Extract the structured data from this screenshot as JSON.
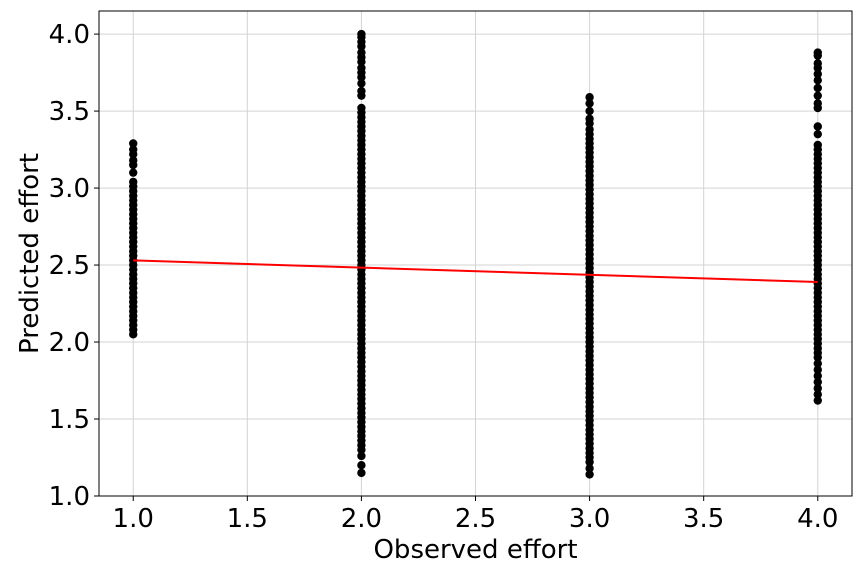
{
  "chart_data": {
    "type": "scatter",
    "title": "",
    "xlabel": "Observed effort",
    "ylabel": "Predicted effort",
    "xlim": [
      0.85,
      4.15
    ],
    "ylim": [
      1.0,
      4.15
    ],
    "xticks": [
      1.0,
      1.5,
      2.0,
      2.5,
      3.0,
      3.5,
      4.0
    ],
    "yticks": [
      1.0,
      1.5,
      2.0,
      2.5,
      3.0,
      3.5,
      4.0
    ],
    "xtick_labels": [
      "1.0",
      "1.5",
      "2.0",
      "2.5",
      "3.0",
      "3.5",
      "4.0"
    ],
    "ytick_labels": [
      "1.0",
      "1.5",
      "2.0",
      "2.5",
      "3.0",
      "3.5",
      "4.0"
    ],
    "grid": true,
    "point_color": "#000000",
    "line_color": "#ff0000",
    "series": [
      {
        "type": "scatter",
        "groups": [
          {
            "x": 1.0,
            "dense_range": [
              2.05,
              3.05
            ],
            "outliers": [
              3.1,
              3.15,
              3.18,
              3.22,
              3.25,
              3.29
            ]
          },
          {
            "x": 2.0,
            "dense_range": [
              1.33,
              3.54
            ],
            "outliers": [
              1.15,
              1.2,
              1.26,
              1.3,
              3.6,
              3.63,
              3.68,
              3.72,
              3.75,
              3.78,
              3.82,
              3.85,
              3.88,
              3.92,
              3.95,
              3.98,
              4.0
            ]
          },
          {
            "x": 3.0,
            "dense_range": [
              1.22,
              3.4
            ],
            "outliers": [
              1.14,
              1.18,
              3.42,
              3.45,
              3.5,
              3.55,
              3.59
            ]
          },
          {
            "x": 4.0,
            "dense_range": [
              1.9,
              3.3
            ],
            "outliers": [
              1.62,
              1.66,
              1.7,
              1.74,
              1.78,
              1.82,
              1.86,
              3.35,
              3.4,
              3.52,
              3.55,
              3.6,
              3.65,
              3.7,
              3.74,
              3.78,
              3.81,
              3.86,
              3.88
            ]
          }
        ]
      },
      {
        "type": "line",
        "x": [
          1.0,
          4.0
        ],
        "y": [
          2.53,
          2.39
        ]
      }
    ]
  }
}
